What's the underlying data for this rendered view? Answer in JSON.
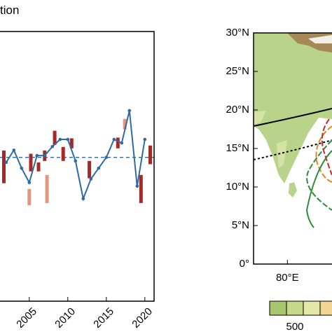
{
  "chart_data": [
    {
      "type": "line",
      "title": "tion",
      "x": [
        2002,
        2003,
        2004,
        2005,
        2006,
        2007,
        2008,
        2009,
        2010,
        2011,
        2012,
        2013,
        2014,
        2015,
        2016,
        2017,
        2018,
        2019,
        2020
      ],
      "values": [
        -0.14,
        0.2,
        -0.3,
        -0.7,
        0.05,
        0.05,
        0.3,
        0.5,
        0.5,
        -0.1,
        -1.15,
        -0.6,
        -0.3,
        0,
        0.5,
        0.4,
        1.3,
        -0.8,
        0.5
      ],
      "color": "#2f6aa5",
      "ranges": [
        {
          "color": "#a82828",
          "x": [
            2001.7,
            2005.2,
            2006.2,
            2007.0,
            2008.3,
            2009.4,
            2010.5,
            2012.8,
            2016.5,
            2019.5,
            2020.7
          ],
          "low": [
            -0.72,
            -0.39,
            -0.39,
            -0.1,
            0.35,
            -0.1,
            0.25,
            -0.58,
            0.25,
            -1.27,
            -0.19
          ],
          "high": [
            0.19,
            0.1,
            -0.14,
            0.19,
            0.74,
            0.29,
            0.53,
            -0.1,
            0.55,
            -0.49,
            0.33
          ]
        },
        {
          "color": "#e3977a",
          "x": [
            2005.0,
            2007.3,
            2017.4
          ],
          "low": [
            -1.33,
            -1.27,
            0.78
          ],
          "high": [
            -0.88,
            -0.49,
            1.07
          ]
        }
      ],
      "reference_line": 0,
      "xlim": [
        2001.2,
        2021.2
      ],
      "xticks": [
        2005,
        2010,
        2015,
        2020
      ],
      "ylim": [
        -4,
        3.5
      ]
    },
    {
      "type": "map",
      "xlim": [
        75.6,
        85.8
      ],
      "xticks": [
        {
          "value": 80,
          "label": "80°E"
        }
      ],
      "ylim": [
        0,
        30
      ],
      "yticks": [
        {
          "value": 0,
          "label": "0°"
        },
        {
          "value": 5,
          "label": "5°N"
        },
        {
          "value": 10,
          "label": "10°N"
        },
        {
          "value": 15,
          "label": "15°N"
        },
        {
          "value": 20,
          "label": "20°N"
        },
        {
          "value": 25,
          "label": "25°N"
        },
        {
          "value": 30,
          "label": "30°N"
        }
      ],
      "colorbar": {
        "ticks": [
          500
        ]
      }
    }
  ]
}
